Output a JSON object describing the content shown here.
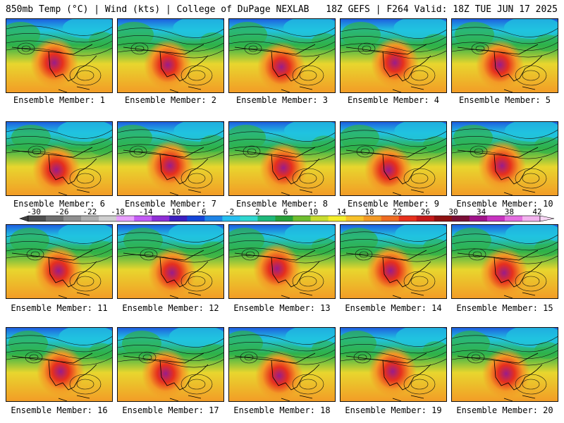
{
  "header": {
    "left": "850mb Temp (°C) | Wind (kts) | College of DuPage NEXLAB",
    "right": "18Z GEFS | F264 Valid: 18Z TUE JUN 17 2025"
  },
  "colorbar": {
    "tick_labels": [
      "-30",
      "-26",
      "-22",
      "-18",
      "-14",
      "-10",
      "-6",
      "-2",
      "2",
      "6",
      "10",
      "14",
      "18",
      "22",
      "26",
      "30",
      "34",
      "38",
      "42"
    ],
    "colors": [
      "#4f4f4f",
      "#6f6f6f",
      "#8f8f8f",
      "#afafaf",
      "#cfcfcf",
      "#e9a0ff",
      "#c35cf5",
      "#8f2fd6",
      "#3b1fc0",
      "#1446d8",
      "#1f84e6",
      "#27bff0",
      "#2fd7d0",
      "#1fb87a",
      "#27a039",
      "#6fbe2f",
      "#c8dc2f",
      "#f5ee2c",
      "#f7c12a",
      "#f29a26",
      "#ee6c22",
      "#e6301d",
      "#c41a1a",
      "#8f1111",
      "#7a0f37",
      "#a0148a",
      "#c733c0",
      "#e46ee0",
      "#f2b2ee"
    ]
  },
  "members": [
    {
      "caption": "Ensemble Member: 1"
    },
    {
      "caption": "Ensemble Member: 2"
    },
    {
      "caption": "Ensemble Member: 3"
    },
    {
      "caption": "Ensemble Member: 4"
    },
    {
      "caption": "Ensemble Member: 5"
    },
    {
      "caption": "Ensemble Member: 6"
    },
    {
      "caption": "Ensemble Member: 7"
    },
    {
      "caption": "Ensemble Member: 8"
    },
    {
      "caption": "Ensemble Member: 9"
    },
    {
      "caption": "Ensemble Member: 10"
    },
    {
      "caption": "Ensemble Member: 11"
    },
    {
      "caption": "Ensemble Member: 12"
    },
    {
      "caption": "Ensemble Member: 13"
    },
    {
      "caption": "Ensemble Member: 14"
    },
    {
      "caption": "Ensemble Member: 15"
    },
    {
      "caption": "Ensemble Member: 16"
    },
    {
      "caption": "Ensemble Member: 17"
    },
    {
      "caption": "Ensemble Member: 18"
    },
    {
      "caption": "Ensemble Member: 19"
    },
    {
      "caption": "Ensemble Member: 20"
    }
  ],
  "map_colors": {
    "cold": "#1e5fe0",
    "cool": "#21c3e0",
    "mild": "#2fb24a",
    "warm": "#e8d62e",
    "hot": "#f39a26",
    "veryhot": "#e6301d",
    "extreme": "#9a1c8a"
  }
}
